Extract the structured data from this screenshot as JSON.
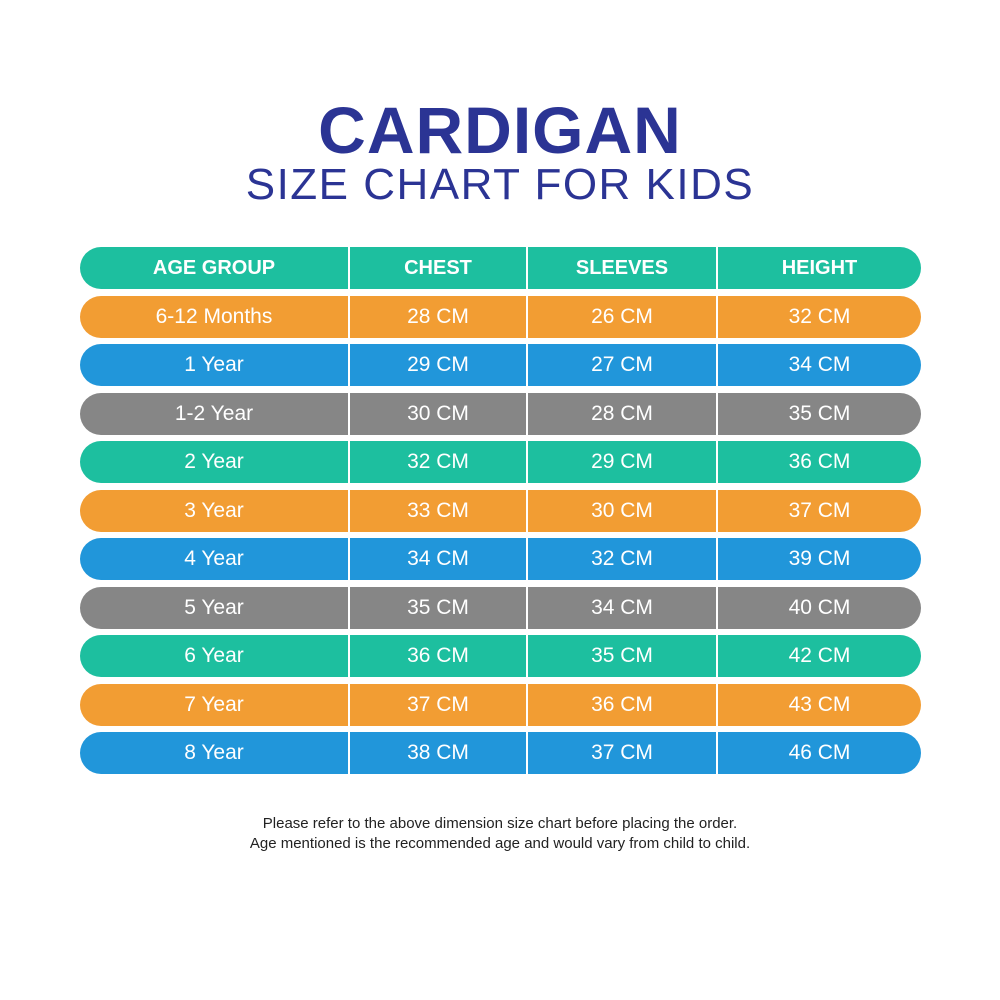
{
  "title": "CARDIGAN",
  "subtitle": "SIZE CHART FOR KIDS",
  "colors": {
    "title": "#2b3494",
    "teal": "#1dbf9f",
    "orange": "#f29d33",
    "blue": "#2196da",
    "gray": "#868686"
  },
  "headers": [
    "AGE GROUP",
    "CHEST",
    "SLEEVES",
    "HEIGHT"
  ],
  "rows": [
    {
      "color": "orange",
      "cells": [
        "6-12 Months",
        "28 CM",
        "26 CM",
        "32 CM"
      ]
    },
    {
      "color": "blue",
      "cells": [
        "1 Year",
        "29 CM",
        "27 CM",
        "34 CM"
      ]
    },
    {
      "color": "gray",
      "cells": [
        "1-2 Year",
        "30 CM",
        "28 CM",
        "35 CM"
      ]
    },
    {
      "color": "teal",
      "cells": [
        "2 Year",
        "32 CM",
        "29 CM",
        "36 CM"
      ]
    },
    {
      "color": "orange",
      "cells": [
        "3 Year",
        "33 CM",
        "30 CM",
        "37 CM"
      ]
    },
    {
      "color": "blue",
      "cells": [
        "4 Year",
        "34 CM",
        "32 CM",
        "39 CM"
      ]
    },
    {
      "color": "gray",
      "cells": [
        "5 Year",
        "35 CM",
        "34 CM",
        "40 CM"
      ]
    },
    {
      "color": "teal",
      "cells": [
        "6 Year",
        "36 CM",
        "35 CM",
        "42 CM"
      ]
    },
    {
      "color": "orange",
      "cells": [
        "7 Year",
        "37 CM",
        "36 CM",
        "43 CM"
      ]
    },
    {
      "color": "blue",
      "cells": [
        "8 Year",
        "38 CM",
        "37 CM",
        "46 CM"
      ]
    }
  ],
  "notes": [
    "Please refer to the above dimension size chart before placing the order.",
    "Age mentioned is the recommended age and would vary from child to child."
  ]
}
